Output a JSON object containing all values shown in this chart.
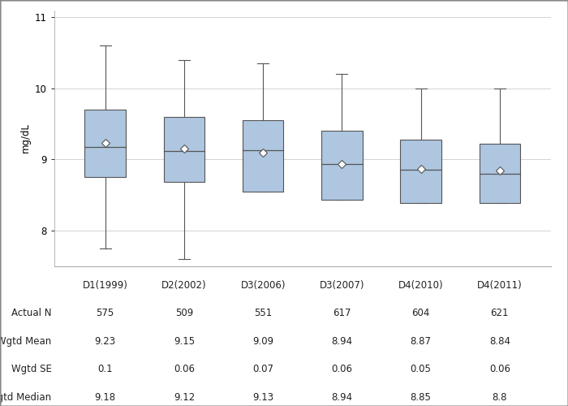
{
  "categories": [
    "D1(1999)",
    "D2(2002)",
    "D3(2006)",
    "D3(2007)",
    "D4(2010)",
    "D4(2011)"
  ],
  "box_data": [
    {
      "whisker_low": 7.75,
      "q1": 8.75,
      "median": 9.18,
      "q3": 9.7,
      "whisker_high": 10.6,
      "mean": 9.23
    },
    {
      "whisker_low": 7.6,
      "q1": 8.68,
      "median": 9.12,
      "q3": 9.6,
      "whisker_high": 10.4,
      "mean": 9.15
    },
    {
      "whisker_low": 8.55,
      "q1": 8.55,
      "median": 9.13,
      "q3": 9.55,
      "whisker_high": 10.35,
      "mean": 9.09
    },
    {
      "whisker_low": 8.43,
      "q1": 8.43,
      "median": 8.94,
      "q3": 9.4,
      "whisker_high": 10.2,
      "mean": 8.94
    },
    {
      "whisker_low": 8.38,
      "q1": 8.38,
      "median": 8.85,
      "q3": 9.28,
      "whisker_high": 10.0,
      "mean": 8.87
    },
    {
      "whisker_low": 8.38,
      "q1": 8.38,
      "median": 8.8,
      "q3": 9.22,
      "whisker_high": 10.0,
      "mean": 8.84
    }
  ],
  "actual_n": [
    575,
    509,
    551,
    617,
    604,
    621
  ],
  "wgtd_mean": [
    9.23,
    9.15,
    9.09,
    8.94,
    8.87,
    8.84
  ],
  "wgtd_se": [
    0.1,
    0.06,
    0.07,
    0.06,
    0.05,
    0.06
  ],
  "wgtd_median": [
    9.18,
    9.12,
    9.13,
    8.94,
    8.85,
    8.8
  ],
  "ylabel": "mg/dL",
  "ylim": [
    7.5,
    11.1
  ],
  "yticks": [
    8,
    9,
    10,
    11
  ],
  "box_color": "#aec6e0",
  "box_edge_color": "#555555",
  "whisker_color": "#555555",
  "median_color": "#555555",
  "mean_marker_facecolor": "#ffffff",
  "mean_marker_edgecolor": "#555555",
  "grid_color": "#cccccc",
  "background_color": "#ffffff",
  "table_row_labels": [
    "Actual N",
    "Wgtd Mean",
    "Wgtd SE",
    "Wgtd Median"
  ],
  "font_family": "sans-serif",
  "font_size": 8.5
}
